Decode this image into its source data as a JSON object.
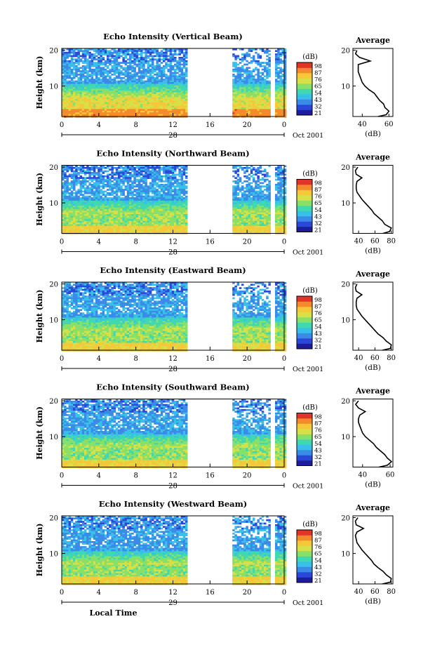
{
  "figure": {
    "date_label": "Oct 2001",
    "xlabel": "Local Time",
    "colorbar_unit": "(dB)",
    "colorbar_ticks": [
      "98",
      "87",
      "76",
      "65",
      "54",
      "43",
      "32",
      "21"
    ],
    "colorbar_colors": [
      "#1c1c9c",
      "#2a48d8",
      "#3a8ae8",
      "#38c0e8",
      "#40d8b0",
      "#88e068",
      "#d8e048",
      "#f4c838",
      "#f48a2c",
      "#e03428"
    ],
    "average_title": "Average",
    "average_xlabel": "(dB)",
    "no_data_gaps_hours": [
      [
        13.4,
        18.2
      ],
      [
        22.5,
        22.8
      ]
    ],
    "low_intensity_color": "#3050c8",
    "high_intensity_color": "#e85030"
  },
  "chart_data": [
    {
      "type": "heatmap",
      "title": "Echo Intensity (Vertical Beam)",
      "xlabel": "",
      "ylabel": "Height (km)",
      "x_ticks": [
        "0",
        "4",
        "8",
        "12",
        "16",
        "20",
        "0"
      ],
      "x_range_hours": [
        0,
        24
      ],
      "y_ticks": [
        "20",
        "10"
      ],
      "y_range_km": [
        1.5,
        20.5
      ],
      "day_label": "28",
      "colorbar_range_db": [
        21,
        98
      ],
      "low_layer_peak_db": 85,
      "average_profile": {
        "title": "Average",
        "xlabel": "(dB)",
        "x_ticks": [
          "40",
          "60"
        ],
        "xlim": [
          33,
          63
        ],
        "y_ticks": [
          "20",
          "10"
        ],
        "height_km": [
          1.5,
          2,
          3,
          4,
          5,
          6,
          7,
          8,
          9,
          10,
          11,
          12,
          13,
          14,
          15,
          16,
          17,
          18,
          19,
          20
        ],
        "db": [
          52,
          58,
          60,
          57,
          56,
          53,
          51,
          49,
          45,
          42,
          40,
          39,
          38,
          37,
          37,
          37,
          46,
          38,
          35,
          36
        ]
      }
    },
    {
      "type": "heatmap",
      "title": "Echo Intensity (Northward Beam)",
      "xlabel": "",
      "ylabel": "Height (km)",
      "x_ticks": [
        "0",
        "4",
        "8",
        "12",
        "16",
        "20",
        "0"
      ],
      "x_range_hours": [
        0,
        24
      ],
      "y_ticks": [
        "20",
        "10"
      ],
      "y_range_km": [
        1.5,
        20.5
      ],
      "day_label": "28",
      "colorbar_range_db": [
        21,
        98
      ],
      "low_layer_peak_db": 76,
      "average_profile": {
        "title": "Average",
        "xlabel": "(dB)",
        "x_ticks": [
          "40",
          "60",
          "80"
        ],
        "xlim": [
          33,
          82
        ],
        "y_ticks": [
          "20",
          "10"
        ],
        "height_km": [
          1.5,
          2,
          3,
          4,
          5,
          6,
          7,
          8,
          9,
          10,
          11,
          12,
          13,
          14,
          15,
          16,
          17,
          18,
          19,
          20
        ],
        "db": [
          70,
          78,
          80,
          72,
          69,
          64,
          59,
          56,
          52,
          48,
          44,
          41,
          38,
          37,
          37,
          38,
          44,
          37,
          36,
          39
        ]
      }
    },
    {
      "type": "heatmap",
      "title": "Echo Intensity (Eastward Beam)",
      "xlabel": "",
      "ylabel": "Height (km)",
      "x_ticks": [
        "0",
        "4",
        "8",
        "12",
        "16",
        "20",
        "0"
      ],
      "x_range_hours": [
        0,
        24
      ],
      "y_ticks": [
        "20",
        "10"
      ],
      "y_range_km": [
        1.5,
        20.5
      ],
      "day_label": "28",
      "colorbar_range_db": [
        21,
        98
      ],
      "low_layer_peak_db": 76,
      "average_profile": {
        "title": "Average",
        "xlabel": "(dB)",
        "x_ticks": [
          "40",
          "60",
          "80"
        ],
        "xlim": [
          33,
          82
        ],
        "y_ticks": [
          "20",
          "10"
        ],
        "height_km": [
          1.5,
          2,
          3,
          4,
          5,
          6,
          7,
          8,
          9,
          10,
          11,
          12,
          13,
          14,
          15,
          16,
          17,
          18,
          19,
          20
        ],
        "db": [
          69,
          79,
          80,
          74,
          70,
          64,
          60,
          56,
          52,
          48,
          44,
          41,
          38,
          37,
          37,
          38,
          44,
          37,
          36,
          38
        ]
      }
    },
    {
      "type": "heatmap",
      "title": "Echo Intensity (Southward Beam)",
      "xlabel": "",
      "ylabel": "Height (km)",
      "x_ticks": [
        "0",
        "4",
        "8",
        "12",
        "16",
        "20",
        "0"
      ],
      "x_range_hours": [
        0,
        24
      ],
      "y_ticks": [
        "20",
        "10"
      ],
      "y_range_km": [
        1.5,
        20.5
      ],
      "day_label": "28",
      "colorbar_range_db": [
        21,
        98
      ],
      "low_layer_peak_db": 76,
      "average_profile": {
        "title": "Average",
        "xlabel": "(dB)",
        "x_ticks": [
          "40",
          "60"
        ],
        "xlim": [
          33,
          62
        ],
        "y_ticks": [
          "20",
          "10"
        ],
        "height_km": [
          1.5,
          2,
          3,
          4,
          5,
          6,
          7,
          8,
          9,
          10,
          11,
          12,
          13,
          14,
          15,
          16,
          17,
          18,
          19,
          20
        ],
        "db": [
          52,
          58,
          61,
          58,
          56,
          53,
          50,
          48,
          45,
          42,
          40,
          39,
          38,
          37,
          37,
          38,
          42,
          37,
          35,
          37
        ]
      }
    },
    {
      "type": "heatmap",
      "title": "Echo Intensity (Westward Beam)",
      "xlabel": "Local Time",
      "ylabel": "Height (km)",
      "x_ticks": [
        "0",
        "4",
        "8",
        "12",
        "16",
        "20",
        "0"
      ],
      "x_range_hours": [
        0,
        24
      ],
      "y_ticks": [
        "20",
        "10"
      ],
      "y_range_km": [
        1.5,
        20.5
      ],
      "day_label": "29",
      "colorbar_range_db": [
        21,
        98
      ],
      "low_layer_peak_db": 76,
      "average_profile": {
        "title": "Average",
        "xlabel": "(dB)",
        "x_ticks": [
          "40",
          "60",
          "80"
        ],
        "xlim": [
          33,
          82
        ],
        "y_ticks": [
          "20",
          "10"
        ],
        "height_km": [
          1.5,
          2,
          3,
          4,
          5,
          6,
          7,
          8,
          9,
          10,
          11,
          12,
          13,
          14,
          15,
          16,
          17,
          18,
          19,
          20
        ],
        "db": [
          69,
          79,
          80,
          74,
          70,
          64,
          59,
          56,
          52,
          48,
          44,
          41,
          38,
          37,
          36,
          38,
          46,
          37,
          36,
          39
        ]
      }
    }
  ]
}
